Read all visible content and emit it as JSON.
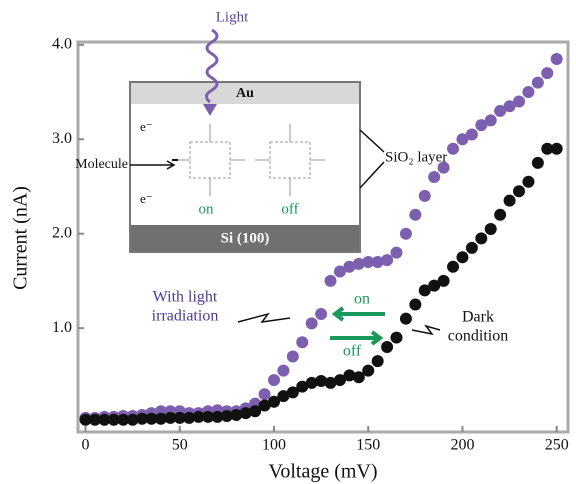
{
  "chart_data": {
    "type": "scatter",
    "x_label": "Voltage (mV)",
    "y_label": "Current (nA)",
    "x": [
      0,
      5,
      10,
      15,
      20,
      25,
      30,
      35,
      40,
      45,
      50,
      55,
      60,
      65,
      70,
      75,
      80,
      85,
      90,
      95,
      100,
      105,
      110,
      115,
      120,
      125,
      130,
      135,
      140,
      145,
      150,
      155,
      160,
      165,
      170,
      175,
      180,
      185,
      190,
      195,
      200,
      205,
      210,
      215,
      220,
      225,
      230,
      235,
      240,
      245,
      250
    ],
    "series": [
      {
        "color": "#7d5fb0",
        "values": [
          0.05,
          0.05,
          0.06,
          0.06,
          0.07,
          0.07,
          0.08,
          0.1,
          0.12,
          0.12,
          0.12,
          0.1,
          0.1,
          0.12,
          0.13,
          0.12,
          0.12,
          0.15,
          0.2,
          0.3,
          0.45,
          0.55,
          0.7,
          0.85,
          1.05,
          1.15,
          1.5,
          1.6,
          1.65,
          1.68,
          1.7,
          1.7,
          1.72,
          1.8,
          2.0,
          2.2,
          2.4,
          2.6,
          2.7,
          2.9,
          3.0,
          3.05,
          3.15,
          3.2,
          3.3,
          3.35,
          3.4,
          3.5,
          3.6,
          3.7,
          3.85
        ]
      },
      {
        "color": "#111111",
        "values": [
          0.03,
          0.03,
          0.03,
          0.03,
          0.03,
          0.03,
          0.04,
          0.04,
          0.04,
          0.05,
          0.05,
          0.05,
          0.06,
          0.06,
          0.06,
          0.07,
          0.08,
          0.1,
          0.12,
          0.18,
          0.22,
          0.28,
          0.32,
          0.38,
          0.42,
          0.44,
          0.42,
          0.45,
          0.5,
          0.48,
          0.55,
          0.65,
          0.8,
          0.9,
          1.1,
          1.25,
          1.4,
          1.45,
          1.5,
          1.65,
          1.75,
          1.85,
          1.95,
          2.05,
          2.2,
          2.35,
          2.45,
          2.55,
          2.75,
          2.9,
          2.9
        ]
      }
    ],
    "xlim": [
      -4,
      256
    ],
    "ylim": [
      -0.1,
      4.03
    ],
    "xticks": [
      0,
      50,
      100,
      150,
      200,
      250
    ],
    "yticks": [
      {
        "value": 1,
        "label": "1.0"
      },
      {
        "value": 2,
        "label": "2.0"
      },
      {
        "value": 3,
        "label": "3.0"
      },
      {
        "value": 4,
        "label": "4.0"
      }
    ],
    "annotations": [
      {
        "lines": [
          "With light",
          "irradiation"
        ],
        "color": "#4b3a9a"
      },
      {
        "lines": [
          "Dark",
          "condition"
        ],
        "color": "#111111"
      },
      {
        "lines": [
          "on"
        ],
        "color": "#1a9a5a"
      },
      {
        "lines": [
          "off"
        ],
        "color": "#1a9a5a"
      }
    ],
    "inset": {
      "light": "Light",
      "top_layer": "Au",
      "bottom_layer": "Si (100)",
      "molecule": "Molecule",
      "electron": "e⁻",
      "oxide": "SiO₂ layer",
      "on": "on",
      "off": "off"
    }
  }
}
